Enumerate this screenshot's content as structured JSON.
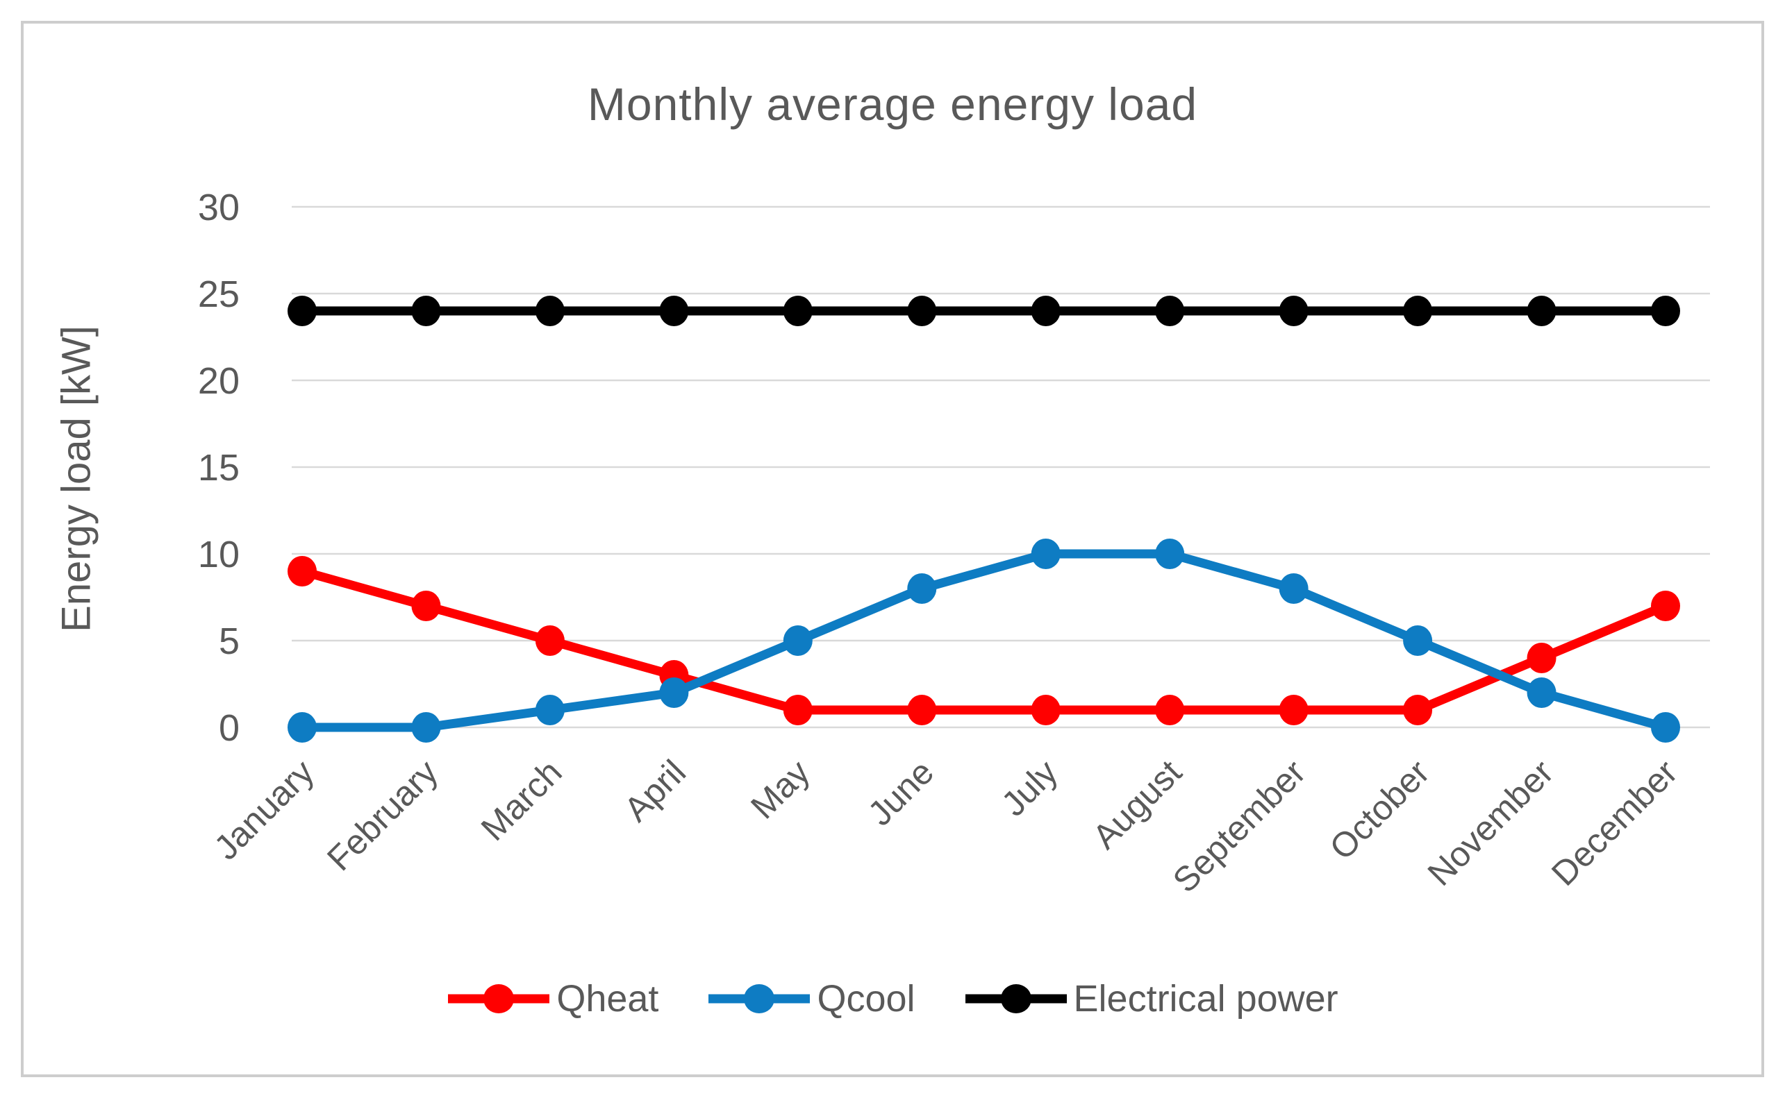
{
  "chart_data": {
    "type": "line",
    "title": "Monthly average energy load",
    "xlabel": "",
    "ylabel": "Energy load [kW]",
    "categories": [
      "January",
      "February",
      "March",
      "April",
      "May",
      "June",
      "July",
      "August",
      "September",
      "October",
      "November",
      "December"
    ],
    "series": [
      {
        "name": "Qheat",
        "color": "#FF0000",
        "values": [
          9,
          7,
          5,
          3,
          1,
          1,
          1,
          1,
          1,
          1,
          4,
          7
        ]
      },
      {
        "name": "Qcool",
        "color": "#0E7CC3",
        "values": [
          0,
          0,
          1,
          2,
          5,
          8,
          10,
          10,
          8,
          5,
          2,
          0
        ]
      },
      {
        "name": "Electrical power",
        "color": "#000000",
        "values": [
          24,
          24,
          24,
          24,
          24,
          24,
          24,
          24,
          24,
          24,
          24,
          24
        ]
      }
    ],
    "ylim": [
      0,
      30
    ],
    "yticks": [
      0,
      5,
      10,
      15,
      20,
      25,
      30
    ],
    "grid": true,
    "legend_position": "bottom",
    "x_label_rotation_deg": 45,
    "style": {
      "gridline_color": "#d9d9d9",
      "text_color": "#595959",
      "frame_border_color": "#cdcdcd",
      "background_color": "#ffffff"
    }
  }
}
